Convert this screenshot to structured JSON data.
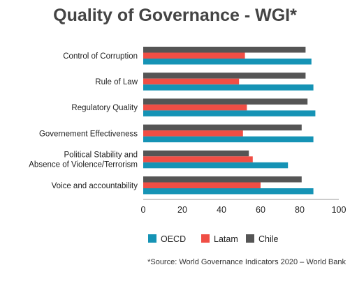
{
  "title": "Quality of Governance - WGI*",
  "source": "*Source: World Governance Indicators 2020 – World Bank",
  "chart_data": {
    "type": "bar",
    "orientation": "horizontal",
    "categories": [
      [
        "Control of Corruption"
      ],
      [
        "Rule of Law"
      ],
      [
        "Regulatory Quality"
      ],
      [
        "Governement Effectiveness"
      ],
      [
        "Political Stability and",
        "Absence of Violence/Terrorism"
      ],
      [
        "Voice and accountability"
      ]
    ],
    "series": [
      {
        "name": "Chile",
        "color": "#555555",
        "values": [
          83,
          83,
          84,
          81,
          54,
          81
        ]
      },
      {
        "name": "Latam",
        "color": "#f04e45",
        "values": [
          52,
          49,
          53,
          51,
          56,
          60
        ]
      },
      {
        "name": "OECD",
        "color": "#1593b5",
        "values": [
          86,
          87,
          88,
          87,
          74,
          87
        ]
      }
    ],
    "legend_order": [
      "OECD",
      "Latam",
      "Chile"
    ],
    "xlim": [
      0,
      100
    ],
    "xticks": [
      0,
      20,
      40,
      60,
      80,
      100
    ],
    "grid": false,
    "legend_position": "bottom"
  }
}
